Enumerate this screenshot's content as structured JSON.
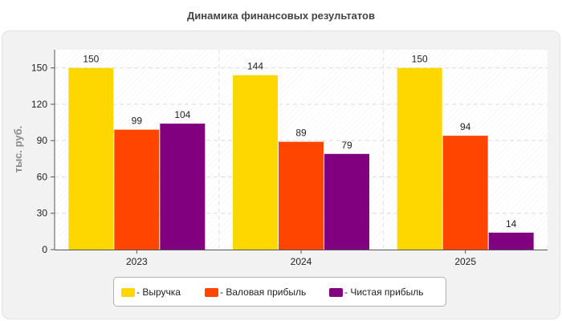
{
  "chart_data": {
    "type": "bar",
    "title": "Динамика финансовых результатов",
    "ylabel": "тыс. руб.",
    "xlabel": "",
    "categories": [
      "2023",
      "2024",
      "2025"
    ],
    "series": [
      {
        "name": "Выручка",
        "values": [
          150,
          144,
          150
        ],
        "color": "#FFD700"
      },
      {
        "name": "Валовая прибыль",
        "values": [
          99,
          89,
          94
        ],
        "color": "#FF4500"
      },
      {
        "name": "Чистая прибыль",
        "values": [
          104,
          79,
          14
        ],
        "color": "#800080"
      }
    ],
    "ylim": [
      0,
      165
    ],
    "yticks": [
      0,
      30,
      60,
      90,
      120,
      150
    ],
    "grid": true,
    "legend_position": "bottom-center",
    "legend_prefix": "- "
  }
}
